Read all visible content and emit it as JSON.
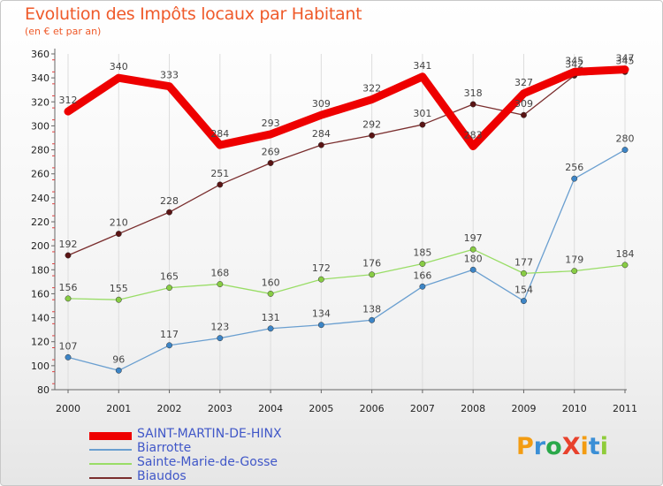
{
  "header": {
    "title": "Evolution des Impôts locaux par Habitant",
    "subtitle": "(en € et par an)"
  },
  "logo": {
    "text": "ProXiti"
  },
  "chart_data": {
    "type": "line",
    "x": [
      "2000",
      "2001",
      "2002",
      "2003",
      "2004",
      "2005",
      "2006",
      "2007",
      "2008",
      "2009",
      "2010",
      "2011"
    ],
    "ylim": [
      80,
      360
    ],
    "yticks": [
      80,
      100,
      120,
      140,
      160,
      180,
      200,
      220,
      240,
      260,
      280,
      300,
      320,
      340,
      360
    ],
    "grid": "vertical",
    "legend_position": "bottom-left",
    "series": [
      {
        "name": "SAINT-MARTIN-DE-HINX",
        "color": "#ee0000",
        "width": 9,
        "markers": false,
        "values": [
          312,
          340,
          333,
          284,
          293,
          309,
          322,
          341,
          283,
          327,
          345,
          347
        ],
        "labels": [
          "312",
          "340",
          "333",
          "284",
          "293",
          "309",
          "322",
          "341",
          "283",
          "327",
          "345",
          "347"
        ]
      },
      {
        "name": "Biarrotte",
        "color": "#6a9fd0",
        "marker": "#3d85c6",
        "width": 1.3,
        "markers": true,
        "values": [
          107,
          96,
          117,
          123,
          131,
          134,
          138,
          166,
          180,
          154,
          256,
          280
        ],
        "labels": [
          "107",
          "96",
          "117",
          "123",
          "131",
          "134",
          "138",
          "166",
          "180",
          "154",
          "256",
          "280"
        ]
      },
      {
        "name": "Sainte-Marie-de-Gosse",
        "color": "#99dd66",
        "marker": "#88cc44",
        "width": 1.3,
        "markers": true,
        "values": [
          156,
          155,
          165,
          168,
          160,
          172,
          176,
          185,
          197,
          177,
          179,
          184
        ],
        "labels": [
          "156",
          "155",
          "165",
          "168",
          "160",
          "172",
          "176",
          "185",
          "197",
          "177",
          "179",
          "184"
        ]
      },
      {
        "name": "Biaudos",
        "color": "#7a2e2e",
        "marker": "#5a1414",
        "width": 1.3,
        "markers": true,
        "values": [
          192,
          210,
          228,
          251,
          269,
          284,
          292,
          301,
          318,
          309,
          342,
          345
        ],
        "labels": [
          "192",
          "210",
          "228",
          "251",
          "269",
          "284",
          "292",
          "301",
          "318",
          "309",
          "342",
          "345"
        ]
      }
    ]
  }
}
